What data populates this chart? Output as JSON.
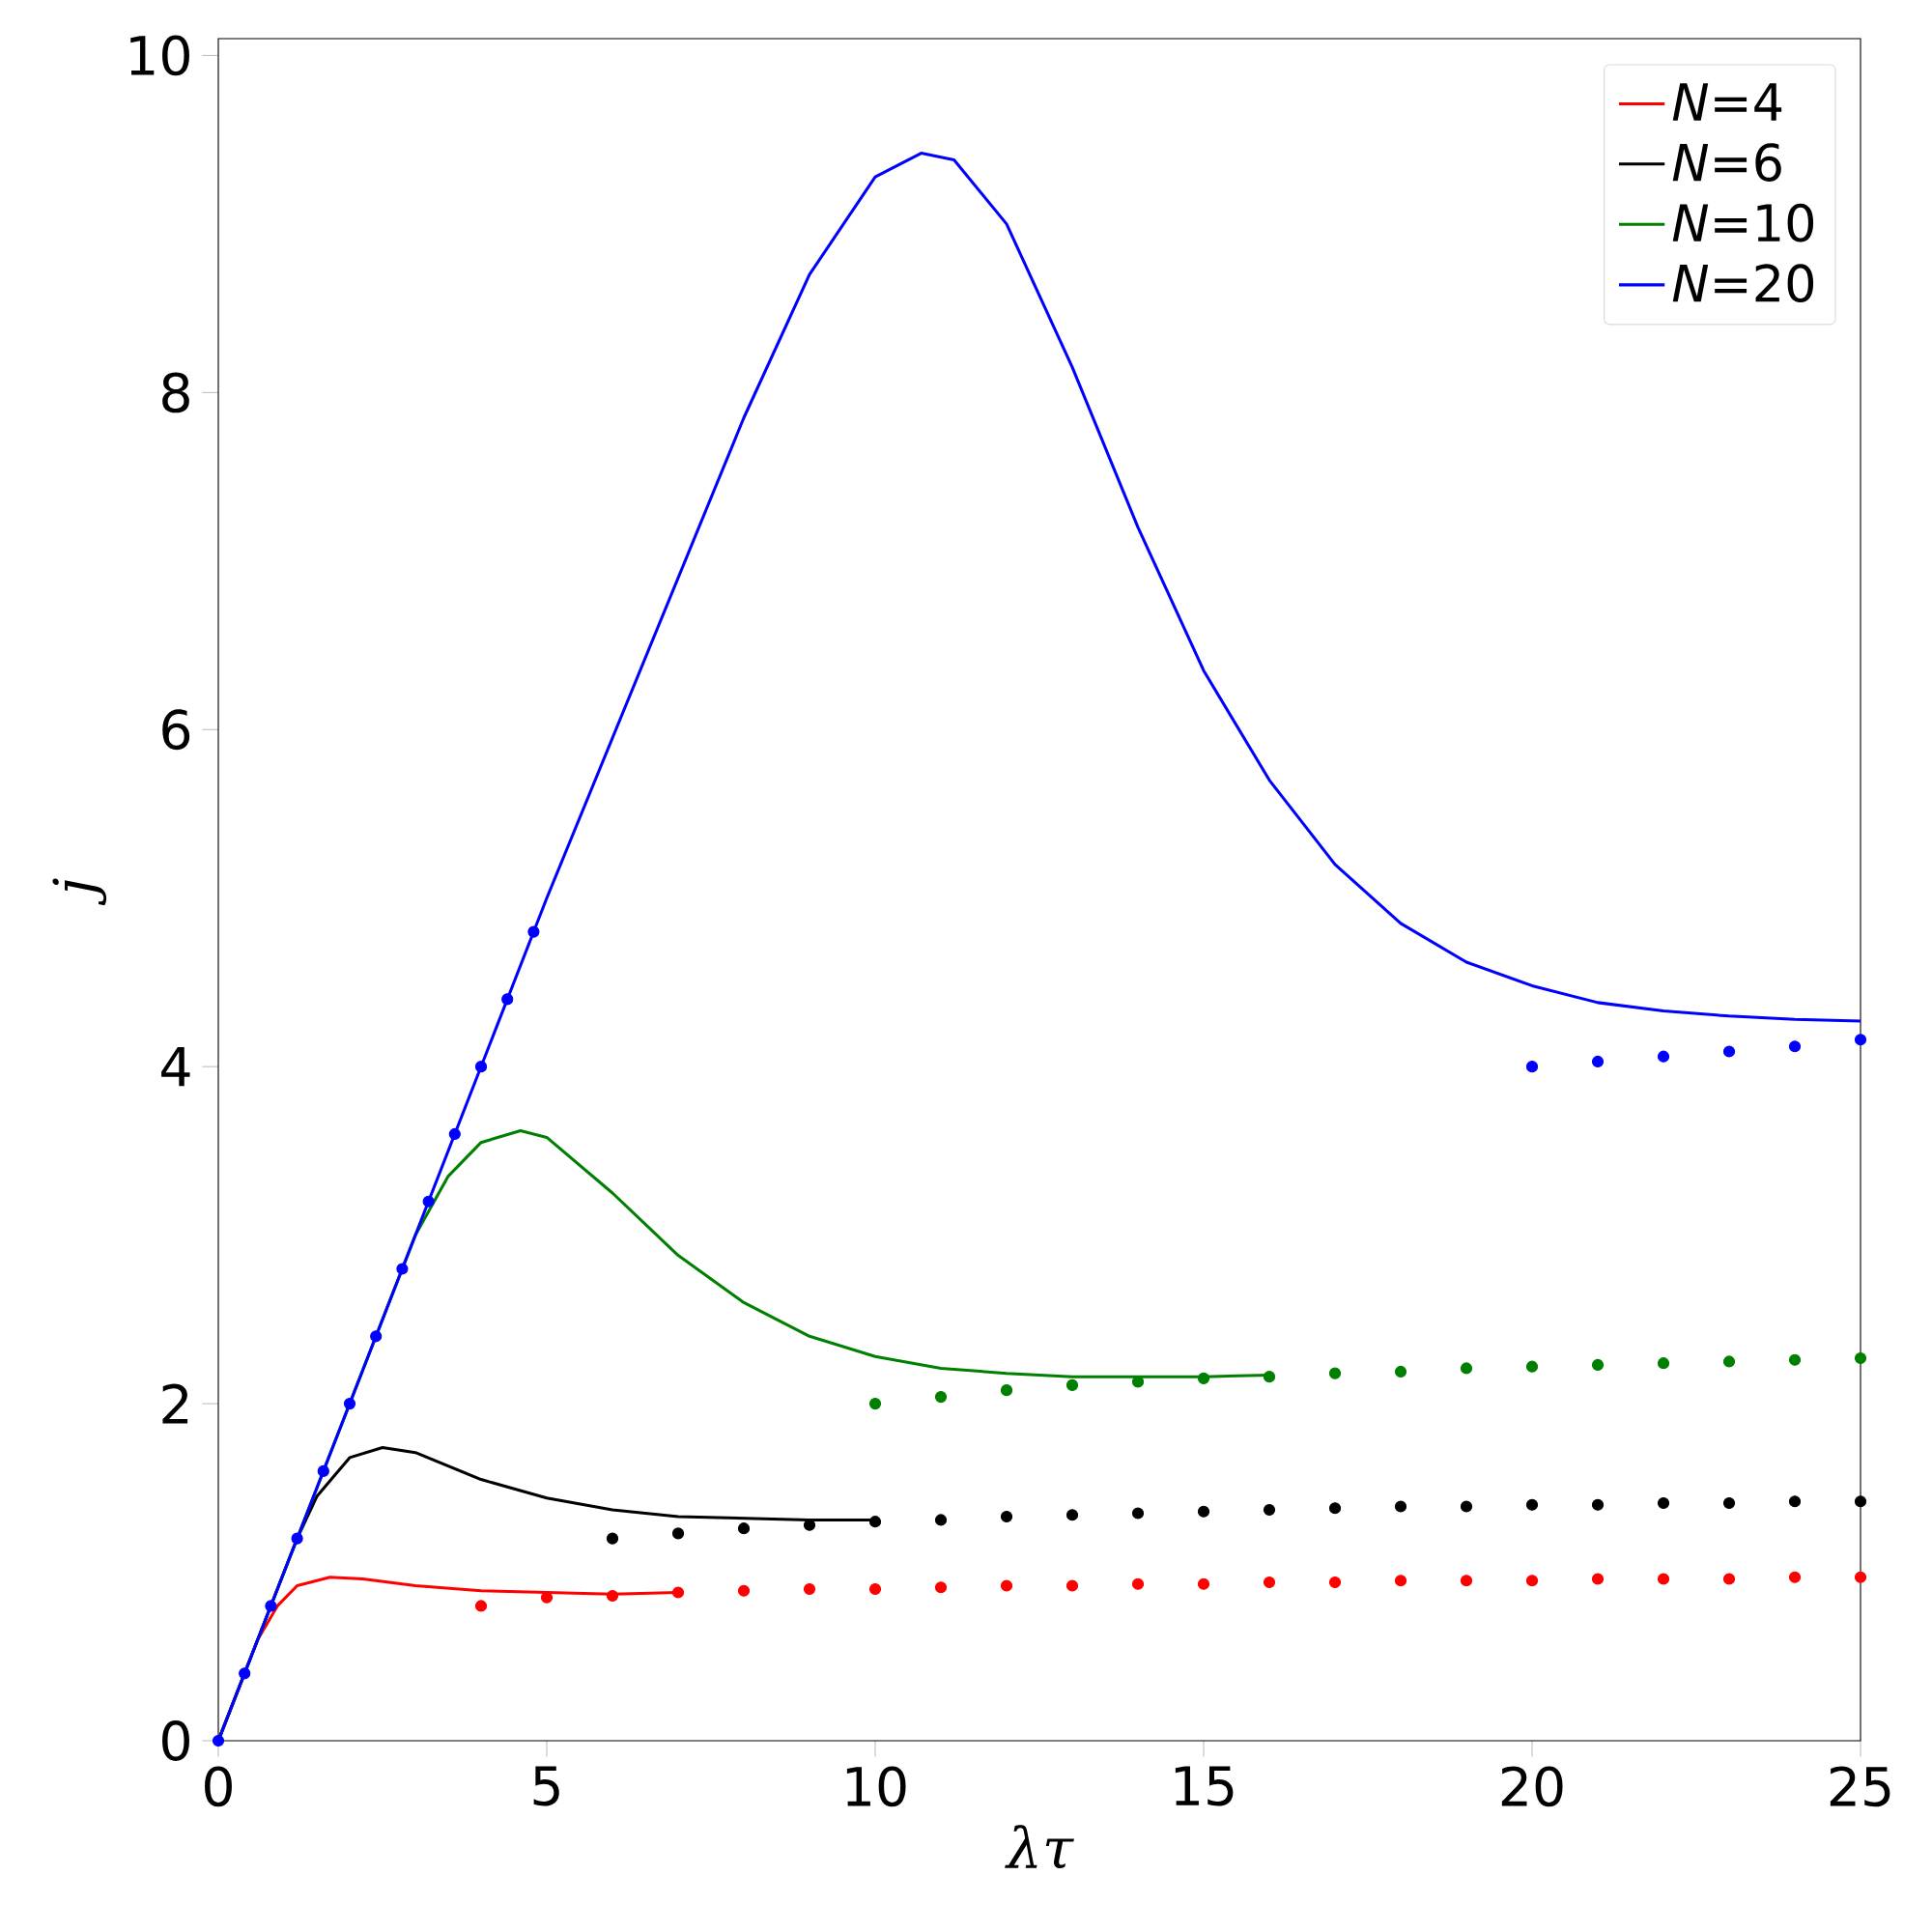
{
  "chart_data": {
    "type": "line",
    "xlabel": "\\lambda\\tau",
    "ylabel": "j",
    "xlim": [
      0,
      25
    ],
    "ylim": [
      0,
      10.1
    ],
    "xticks": [
      0,
      5,
      10,
      15,
      20,
      25
    ],
    "yticks": [
      0,
      2,
      4,
      6,
      8,
      10
    ],
    "legend": "top right",
    "grid": false,
    "series": [
      {
        "name": "*N*=4",
        "color": "#ff0000",
        "marker": "none",
        "x": [
          0,
          0.3,
          0.6,
          0.9,
          1.2,
          1.7,
          2.2,
          3,
          4,
          5,
          6,
          7
        ],
        "values": [
          0,
          null,
          0.6,
          0.8,
          0.92,
          0.97,
          0.96,
          0.92,
          0.89,
          0.88,
          0.87,
          0.88
        ]
      },
      {
        "name": "*N*=6",
        "color": "#000000",
        "marker": "none",
        "x": [
          0,
          0.6,
          1.2,
          1.5,
          2,
          2.5,
          3,
          4,
          5,
          6,
          7,
          8,
          9,
          10
        ],
        "values": [
          0,
          0.6,
          1.2,
          1.45,
          1.68,
          1.74,
          1.71,
          1.55,
          1.44,
          1.37,
          1.33,
          1.32,
          1.31,
          1.31
        ]
      },
      {
        "name": "*N*=10",
        "color": "#008000",
        "marker": "none",
        "x": [
          0,
          1.5,
          3,
          3.5,
          4,
          4.6,
          5,
          6,
          7,
          8,
          9,
          10,
          11,
          12,
          13,
          14,
          15,
          16
        ],
        "values": [
          0,
          1.5,
          3,
          3.35,
          3.55,
          3.62,
          3.58,
          3.25,
          2.88,
          2.6,
          2.4,
          2.28,
          2.21,
          2.18,
          2.16,
          2.16,
          2.16,
          2.17
        ]
      },
      {
        "name": "*N*=20",
        "color": "#0000ff",
        "marker": "none",
        "x": [
          0,
          5,
          6,
          7,
          8,
          9,
          10,
          10.7,
          11.2,
          12,
          13,
          14,
          15,
          16,
          17,
          18,
          19,
          20,
          21,
          22,
          23,
          24,
          25
        ],
        "values": [
          0,
          5,
          5.95,
          6.9,
          7.85,
          8.7,
          9.28,
          9.42,
          9.38,
          9.0,
          8.15,
          7.2,
          6.35,
          5.7,
          5.2,
          4.85,
          4.62,
          4.48,
          4.38,
          4.33,
          4.3,
          4.28,
          4.27
        ]
      },
      {
        "color": "#ff0000",
        "type": "scatter",
        "marker": "circle",
        "x": [
          4,
          5,
          6,
          7,
          8,
          9,
          10,
          11,
          12,
          13,
          14,
          15,
          16,
          17,
          18,
          19,
          20,
          21,
          22,
          23,
          24,
          25
        ],
        "values": [
          0.8,
          0.85,
          0.86,
          0.88,
          0.89,
          0.9,
          0.9,
          0.91,
          0.92,
          0.92,
          0.93,
          0.93,
          0.94,
          0.94,
          0.95,
          0.95,
          0.95,
          0.96,
          0.96,
          0.96,
          0.97,
          0.97
        ]
      },
      {
        "color": "#000000",
        "type": "scatter",
        "marker": "circle",
        "x": [
          6,
          7,
          8,
          9,
          10,
          11,
          12,
          13,
          14,
          15,
          16,
          17,
          18,
          19,
          20,
          21,
          22,
          23,
          24,
          25
        ],
        "values": [
          1.2,
          1.23,
          1.26,
          1.28,
          1.3,
          1.31,
          1.33,
          1.34,
          1.35,
          1.36,
          1.37,
          1.38,
          1.39,
          1.39,
          1.4,
          1.4,
          1.41,
          1.41,
          1.42,
          1.42
        ]
      },
      {
        "color": "#008000",
        "type": "scatter",
        "marker": "circle",
        "x": [
          10,
          11,
          12,
          13,
          14,
          15,
          16,
          17,
          18,
          19,
          20,
          21,
          22,
          23,
          24,
          25
        ],
        "values": [
          2.0,
          2.04,
          2.08,
          2.11,
          2.13,
          2.15,
          2.16,
          2.18,
          2.19,
          2.21,
          2.22,
          2.23,
          2.24,
          2.25,
          2.26,
          2.27
        ]
      },
      {
        "color": "#0000ff",
        "type": "scatter",
        "marker": "circle",
        "x": [
          0,
          0.4,
          0.8,
          1.2,
          1.6,
          2.0,
          2.4,
          2.8,
          3.2,
          3.6,
          4.0,
          4.4,
          4.8
        ],
        "values": [
          0,
          0.4,
          0.8,
          1.2,
          1.6,
          2.0,
          2.4,
          2.8,
          3.2,
          3.6,
          4.0,
          4.4,
          4.8
        ]
      },
      {
        "color": "#0000ff",
        "type": "scatter",
        "marker": "circle",
        "x": [
          20,
          21,
          22,
          23,
          24,
          25
        ],
        "values": [
          4.0,
          4.03,
          4.06,
          4.09,
          4.12,
          4.16
        ]
      }
    ]
  }
}
